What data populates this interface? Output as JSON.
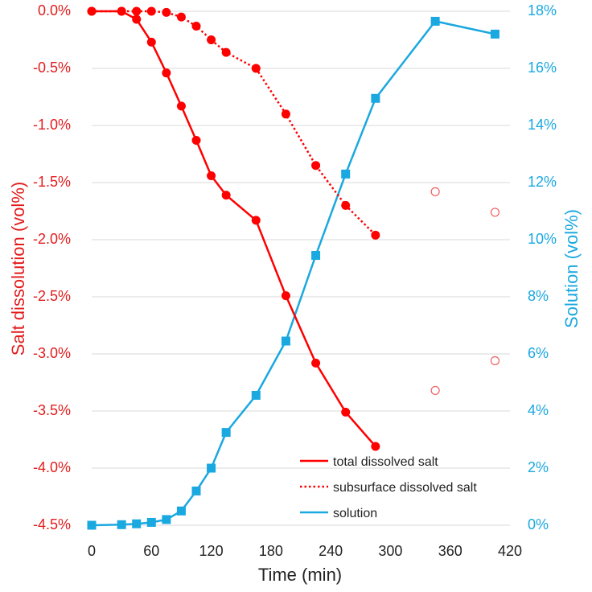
{
  "chart_data": {
    "type": "line",
    "title": "",
    "xlabel": "Time (min)",
    "ylabel_left": "Salt dissolution (vol%)",
    "ylabel_right": "Solution (vol%)",
    "xlim": [
      0,
      420
    ],
    "x_ticks": [
      "0",
      "60",
      "120",
      "180",
      "240",
      "300",
      "360",
      "420"
    ],
    "ylim_left": [
      -4.5,
      0
    ],
    "y_left_ticks": [
      "0.0%",
      "-0.5%",
      "-1.0%",
      "-1.5%",
      "-2.0%",
      "-2.5%",
      "-3.0%",
      "-3.5%",
      "-4.0%",
      "-4.5%"
    ],
    "ylim_right": [
      0,
      18
    ],
    "y_right_ticks": [
      "0%",
      "2%",
      "4%",
      "6%",
      "8%",
      "10%",
      "12%",
      "14%",
      "16%",
      "18%"
    ],
    "grid": "horizontal",
    "legend_position": "bottom-right",
    "colors": {
      "salt": "#ff0000",
      "salt_open": "#f06060",
      "solution": "#1aa8e0",
      "grid": "#d9d9d9"
    },
    "series": [
      {
        "name": "total dissolved salt",
        "axis": "left",
        "style": "solid",
        "marker": "circle",
        "x": [
          0,
          30,
          45,
          60,
          75,
          90,
          105,
          120,
          135,
          165,
          195,
          225,
          255,
          285
        ],
        "y": [
          0.0,
          0.0,
          -0.07,
          -0.27,
          -0.54,
          -0.83,
          -1.13,
          -1.44,
          -1.61,
          -1.83,
          -2.49,
          -3.08,
          -3.51,
          -3.81
        ]
      },
      {
        "name": "subsurface dissolved salt",
        "axis": "left",
        "style": "dotted",
        "marker": "circle",
        "x": [
          0,
          30,
          45,
          60,
          75,
          90,
          105,
          120,
          135,
          165,
          195,
          225,
          255,
          285
        ],
        "y": [
          0.0,
          0.0,
          0.0,
          0.0,
          -0.01,
          -0.05,
          -0.13,
          -0.25,
          -0.36,
          -0.5,
          -0.9,
          -1.35,
          -1.7,
          -1.96
        ]
      },
      {
        "name": "solution",
        "axis": "right",
        "style": "solid",
        "marker": "square",
        "x": [
          0,
          30,
          45,
          60,
          75,
          90,
          105,
          120,
          135,
          165,
          195,
          225,
          255,
          285,
          345,
          405
        ],
        "y": [
          0.0,
          0.02,
          0.05,
          0.1,
          0.2,
          0.5,
          1.2,
          2.0,
          3.25,
          4.55,
          6.45,
          9.45,
          12.3,
          14.95,
          17.65,
          17.2
        ]
      },
      {
        "axis": "left",
        "style": "none",
        "marker": "open-circle",
        "x": [
          345,
          345,
          405,
          405
        ],
        "y": [
          -1.58,
          -3.32,
          -1.76,
          -3.06
        ]
      }
    ]
  }
}
